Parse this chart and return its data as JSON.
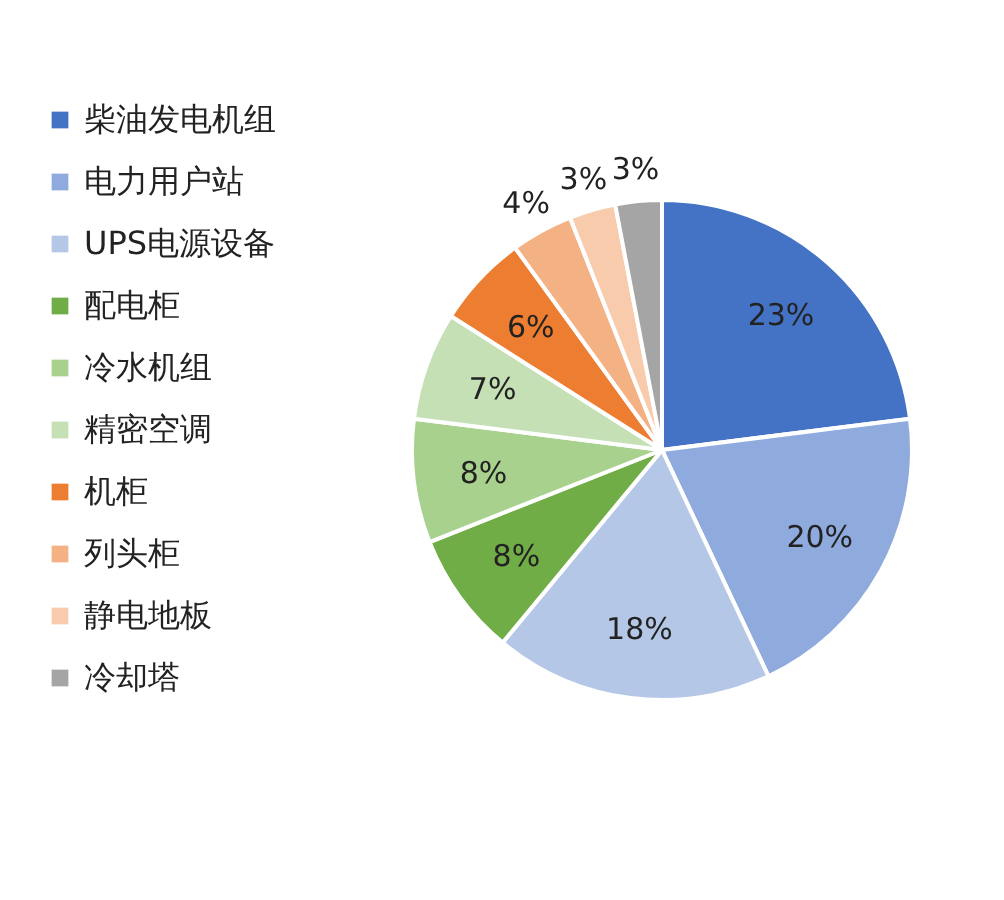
{
  "chart_data": {
    "type": "pie",
    "categories": [
      "柴油发电机组",
      "电力用户站",
      "UPS电源设备",
      "配电柜",
      "冷水机组",
      "精密空调",
      "机柜",
      "列头柜",
      "静电地板",
      "冷却塔"
    ],
    "values": [
      23,
      20,
      18,
      8,
      8,
      7,
      6,
      4,
      3,
      3
    ],
    "value_labels": [
      "23%",
      "20%",
      "18%",
      "8%",
      "8%",
      "7%",
      "6%",
      "4%",
      "3%",
      "3%"
    ],
    "colors": [
      "#4472c4",
      "#8faadc",
      "#b4c7e7",
      "#70ad47",
      "#a9d18e",
      "#c5e0b4",
      "#ed7d31",
      "#f4b183",
      "#f8cbad",
      "#a5a5a5"
    ],
    "legend": "left"
  }
}
